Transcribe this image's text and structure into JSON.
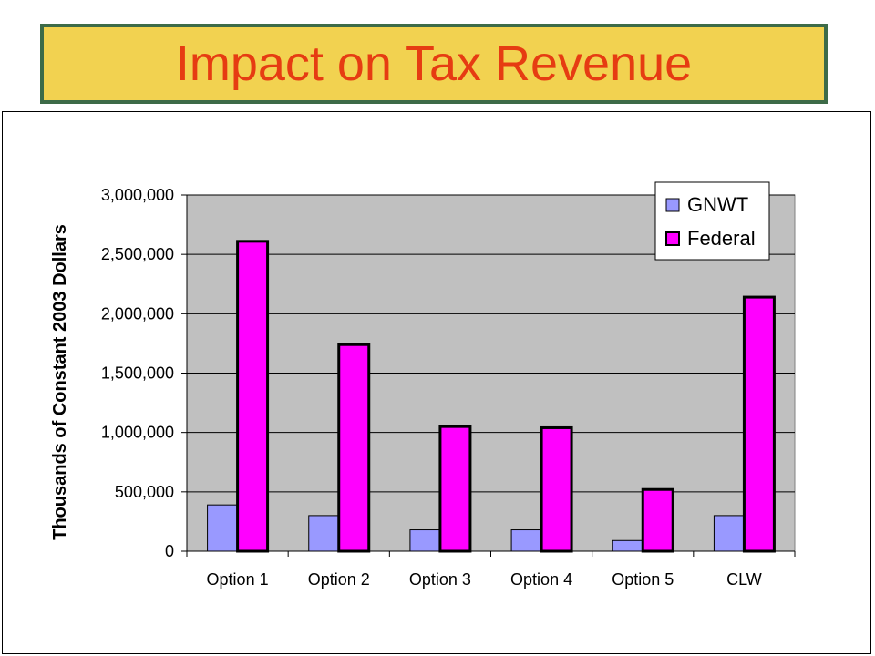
{
  "title": "Impact on Tax Revenue",
  "colors": {
    "banner_bg": "#f2d250",
    "banner_border": "#3d6b48",
    "title_text": "#e63c12",
    "plot_bg": "#c0c0c0",
    "gnwt": "#9999ff",
    "federal": "#ff00ff"
  },
  "chart_data": {
    "type": "bar",
    "categories": [
      "Option 1",
      "Option 2",
      "Option 3",
      "Option 4",
      "Option 5",
      "CLW"
    ],
    "series": [
      {
        "name": "GNWT",
        "values": [
          390000,
          300000,
          180000,
          180000,
          90000,
          300000
        ]
      },
      {
        "name": "Federal",
        "values": [
          2610000,
          1740000,
          1050000,
          1040000,
          520000,
          2140000
        ]
      }
    ],
    "ylabel": "Thousands of Constant 2003 Dollars",
    "ylim": [
      0,
      3000000
    ],
    "yticks": [
      "0",
      "500,000",
      "1,000,000",
      "1,500,000",
      "2,000,000",
      "2,500,000",
      "3,000,000"
    ],
    "grid": true,
    "legend_position": "top-right"
  }
}
